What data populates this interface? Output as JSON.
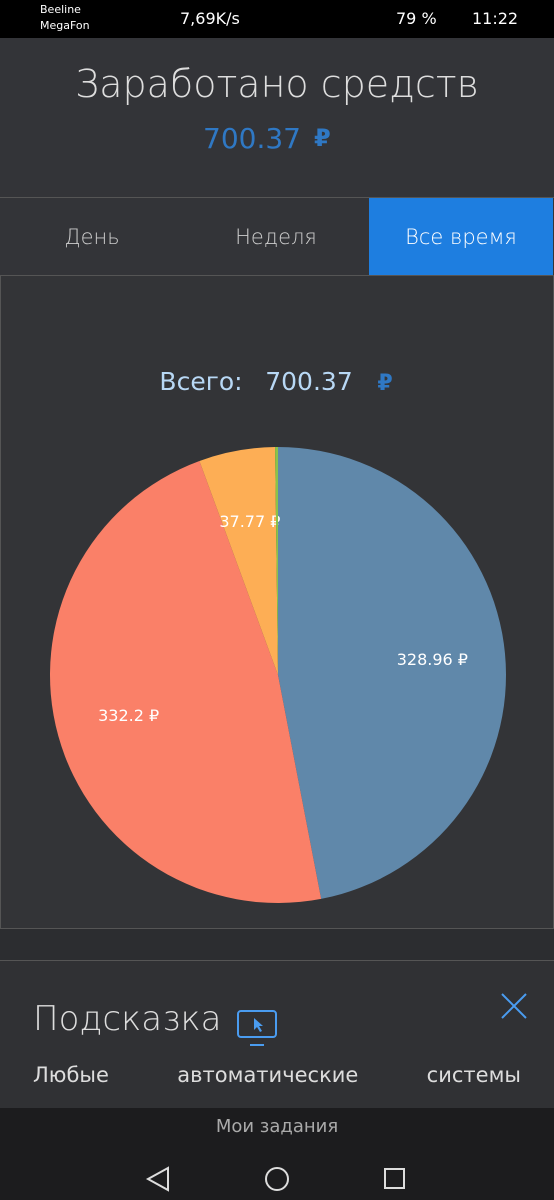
{
  "status_bar": {
    "carrier_1": "Beeline",
    "carrier_2": "MegaFon",
    "speed": "7,69K/s",
    "battery": "79 %",
    "time": "11:22"
  },
  "header": {
    "title": "Заработано средств",
    "amount": "700.37",
    "currency": "₽"
  },
  "tabs": [
    "День",
    "Неделя",
    "Все время"
  ],
  "chart_data": {
    "type": "pie",
    "title": "Всего:",
    "total": "700.37",
    "currency": "₽",
    "categories": [
      null,
      null,
      null,
      null
    ],
    "values": [
      328.96,
      332.2,
      37.77,
      1.44
    ],
    "value_labels": [
      "328.96 ₽",
      "332.2 ₽",
      "37.77 ₽",
      null
    ],
    "colors": [
      "#6088aa",
      "#fa8068",
      "#fdae55",
      "#8bc34a"
    ]
  },
  "hint": {
    "title": "Подсказка",
    "text": "Любые автоматические системы"
  },
  "bottom_bar": {
    "label": "Мои задания"
  }
}
